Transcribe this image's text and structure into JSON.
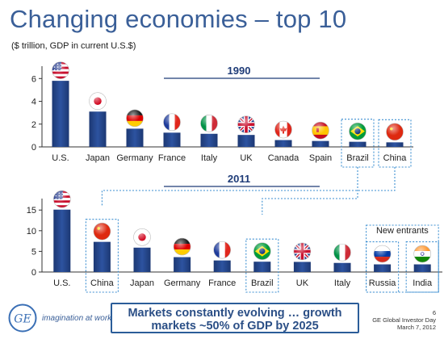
{
  "header": {
    "title": "Changing economies – top 10",
    "subtitle": "($ trillion, GDP in current U.S.$)"
  },
  "chart_data": [
    {
      "type": "bar",
      "title": "1990",
      "categories": [
        "U.S.",
        "Japan",
        "Germany",
        "France",
        "Italy",
        "UK",
        "Canada",
        "Spain",
        "Brazil",
        "China"
      ],
      "values": [
        5.8,
        3.1,
        1.6,
        1.25,
        1.15,
        1.05,
        0.6,
        0.52,
        0.45,
        0.4
      ],
      "flags": [
        "us-flag-icon",
        "japan-flag-icon",
        "germany-flag-icon",
        "france-flag-icon",
        "italy-flag-icon",
        "uk-flag-icon",
        "canada-flag-icon",
        "spain-flag-icon",
        "brazil-flag-icon",
        "china-flag-icon"
      ],
      "highlighted": [
        "Brazil",
        "China"
      ],
      "yticks": [
        0,
        2,
        4,
        6
      ],
      "ylim": [
        0,
        6.8
      ],
      "grid": false
    },
    {
      "type": "bar",
      "title": "2011",
      "categories": [
        "U.S.",
        "China",
        "Japan",
        "Germany",
        "France",
        "Brazil",
        "UK",
        "Italy",
        "Russia",
        "India"
      ],
      "values": [
        15.1,
        7.3,
        5.9,
        3.6,
        2.8,
        2.5,
        2.45,
        2.2,
        1.85,
        1.85
      ],
      "flags": [
        "us-flag-icon",
        "china-flag-icon",
        "japan-flag-icon",
        "germany-flag-icon",
        "france-flag-icon",
        "brazil-flag-icon",
        "uk-flag-icon",
        "italy-flag-icon",
        "russia-flag-icon",
        "india-flag-icon"
      ],
      "highlighted": [
        "China",
        "Brazil",
        "Russia",
        "India"
      ],
      "group_label": "New entrants",
      "yticks": [
        0,
        5,
        10,
        15
      ],
      "ylim": [
        0,
        17
      ],
      "grid": false
    }
  ],
  "colors": {
    "title": "#3a5f98",
    "bar_dark": "#1f3c78",
    "bar_light": "#3a64ad",
    "highlight_box": "#3d8fd1",
    "footer_border": "#2b5d99"
  },
  "footer": {
    "message_line1": "Markets constantly evolving … growth",
    "message_line2": "markets ~50% of GDP by 2025",
    "tagline": "imagination at work",
    "slide_number": "6",
    "event": "GE Global Investor Day",
    "date": "March 7, 2012",
    "logo_icon": "ge-logo-icon"
  }
}
